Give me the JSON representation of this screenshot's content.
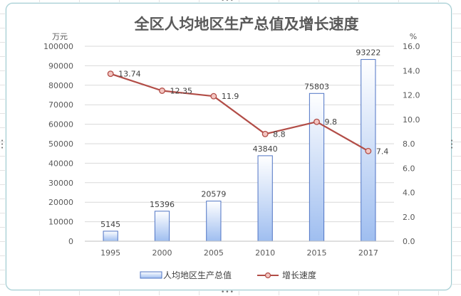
{
  "colors": {
    "bar_fill_top": "#ffffff",
    "bar_fill_bottom": "#9fbef0",
    "bar_stroke": "#4f74c4",
    "line_color": "#b24d47",
    "marker_fill": "#f3c6c2",
    "grid": "#d9d9d9",
    "title": "#5a5a5a",
    "label": "#595959",
    "frame": "#9ecad0"
  },
  "chart_data": {
    "type": "bar",
    "title": "全区人均地区生产总值及增长速度",
    "ylabel_left": "万元",
    "ylabel_right": "%",
    "categories": [
      "1995",
      "2000",
      "2005",
      "2010",
      "2015",
      "2017"
    ],
    "ylim_left": [
      0,
      100000
    ],
    "ylim_right": [
      0,
      16
    ],
    "yticks_left": [
      "0",
      "10000",
      "20000",
      "30000",
      "40000",
      "50000",
      "60000",
      "70000",
      "80000",
      "90000",
      "100000"
    ],
    "yticks_right": [
      "0.0",
      "2.0",
      "4.0",
      "6.0",
      "8.0",
      "10.0",
      "12.0",
      "14.0",
      "16.0"
    ],
    "grid": true,
    "legend_position": "bottom",
    "series": [
      {
        "name": "人均地区生产总值",
        "type": "bar",
        "axis": "left",
        "values": [
          5145,
          15396,
          20579,
          43840,
          75803,
          93222
        ],
        "labels": [
          "5145",
          "15396",
          "20579",
          "43840",
          "75803",
          "93222"
        ]
      },
      {
        "name": "增长速度",
        "type": "line",
        "axis": "right",
        "values": [
          13.74,
          12.35,
          11.9,
          8.8,
          9.8,
          7.4
        ],
        "labels": [
          "13.74",
          "12.35",
          "11.9",
          "8.8",
          "9.8",
          "7.4"
        ]
      }
    ]
  }
}
